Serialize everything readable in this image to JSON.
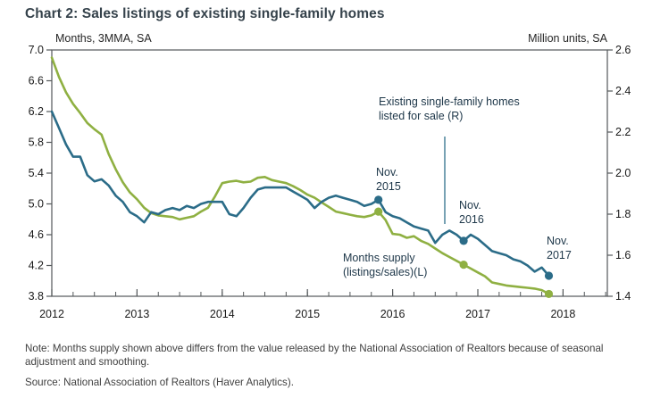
{
  "page_title": "Chart 2: Sales listings of existing single-family homes",
  "chart_data": {
    "type": "line",
    "title": "Chart 2: Sales listings of existing single-family homes",
    "left_axis": {
      "caption": "Months, 3MMA, SA",
      "range": [
        3.8,
        7.0
      ],
      "ticks": [
        "7.0",
        "6.6",
        "6.2",
        "5.8",
        "5.4",
        "5.0",
        "4.6",
        "4.2",
        "3.8"
      ]
    },
    "right_axis": {
      "caption": "Million units, SA",
      "range": [
        1.4,
        2.6
      ],
      "ticks": [
        "2.6",
        "2.4",
        "2.2",
        "2.0",
        "1.8",
        "1.6",
        "1.4"
      ]
    },
    "x_axis": {
      "tick_labels": [
        "2012",
        "2013",
        "2014",
        "2015",
        "2016",
        "2017",
        "2018"
      ],
      "minor_ticks": "quarterly",
      "monthly_start": "2012-01",
      "monthly_end": "2017-11"
    },
    "grid": false,
    "legend": "in-chart annotations",
    "series": [
      {
        "name": "Months supply (listings/sales)(L)",
        "axis": "left",
        "color": "#8FB042",
        "values": [
          6.9,
          6.65,
          6.45,
          6.3,
          6.18,
          6.05,
          5.97,
          5.9,
          5.65,
          5.45,
          5.28,
          5.15,
          5.06,
          4.95,
          4.88,
          4.85,
          4.84,
          4.83,
          4.8,
          4.82,
          4.84,
          4.9,
          4.95,
          5.1,
          5.27,
          5.29,
          5.3,
          5.28,
          5.29,
          5.34,
          5.35,
          5.31,
          5.29,
          5.27,
          5.23,
          5.18,
          5.12,
          5.08,
          5.02,
          4.96,
          4.9,
          4.88,
          4.86,
          4.84,
          4.83,
          4.85,
          4.9,
          4.79,
          4.61,
          4.6,
          4.56,
          4.58,
          4.52,
          4.48,
          4.42,
          4.36,
          4.31,
          4.26,
          4.21,
          4.16,
          4.11,
          4.06,
          3.98,
          3.96,
          3.94,
          3.93,
          3.92,
          3.91,
          3.9,
          3.88,
          3.83
        ]
      },
      {
        "name": "Existing single-family homes listed for sale (R)",
        "axis": "right",
        "color": "#2B6C88",
        "values": [
          2.3,
          2.22,
          2.14,
          2.08,
          2.08,
          1.99,
          1.96,
          1.97,
          1.94,
          1.89,
          1.86,
          1.81,
          1.79,
          1.76,
          1.81,
          1.8,
          1.82,
          1.83,
          1.82,
          1.84,
          1.83,
          1.85,
          1.86,
          1.86,
          1.86,
          1.8,
          1.79,
          1.83,
          1.88,
          1.92,
          1.93,
          1.93,
          1.93,
          1.93,
          1.91,
          1.89,
          1.87,
          1.83,
          1.86,
          1.88,
          1.89,
          1.88,
          1.87,
          1.86,
          1.84,
          1.85,
          1.87,
          1.81,
          1.79,
          1.78,
          1.76,
          1.74,
          1.73,
          1.72,
          1.66,
          1.7,
          1.72,
          1.7,
          1.67,
          1.7,
          1.68,
          1.65,
          1.62,
          1.61,
          1.6,
          1.58,
          1.57,
          1.55,
          1.52,
          1.54,
          1.5
        ]
      }
    ],
    "marked_points": [
      {
        "label": "Nov. 2015",
        "month": "2015-11",
        "months_supply": 4.9,
        "listed_for_sale_millions": 1.87
      },
      {
        "label": "Nov. 2016",
        "month": "2016-11",
        "months_supply": 4.21,
        "listed_for_sale_millions": 1.67
      },
      {
        "label": "Nov. 2017",
        "month": "2017-11",
        "months_supply": 3.83,
        "listed_for_sale_millions": 1.5
      }
    ],
    "annotations": {
      "listed_series_label": "Existing single-family homes listed for sale (R)",
      "supply_series_label": "Months supply (listings/sales)(L)",
      "nov2015": "Nov. 2015",
      "nov2016": "Nov. 2016",
      "nov2017": "Nov. 2017"
    },
    "colors": {
      "supply_line": "#8FB042",
      "listed_line": "#2B6C88",
      "axis": "#54585a",
      "annotation_text": "#20394b",
      "pointer_line": "#3F7A93"
    }
  },
  "note": "Note: Months supply shown above differs from the value released by the National Association of Realtors because of seasonal adjustment and smoothing.",
  "source": "Source: National Association of Realtors (Haver Analytics)."
}
